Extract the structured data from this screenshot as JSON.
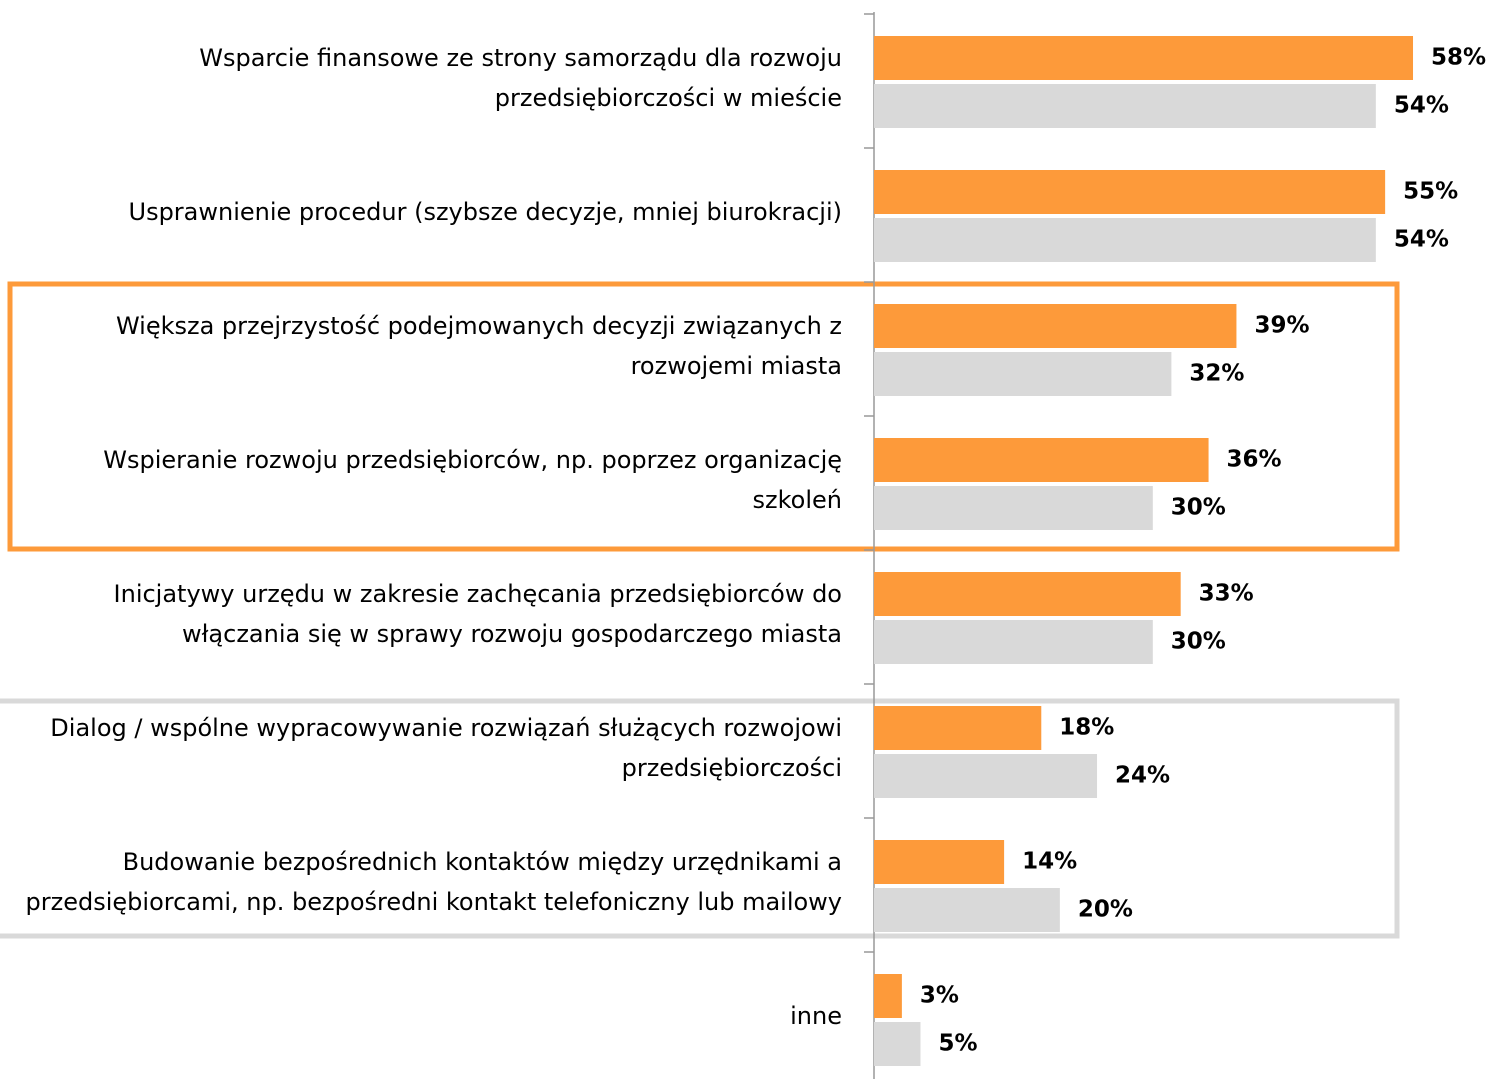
{
  "chart_data": {
    "type": "hbar",
    "categories": [
      [
        "Wsparcie finansowe ze strony samorządu dla rozwoju",
        "przedsiębiorczości w mieście"
      ],
      [
        "Usprawnienie procedur (szybsze decyzje, mniej biurokracji)"
      ],
      [
        "Większa przejrzystość podejmowanych decyzji związanych z",
        "rozwojemi miasta"
      ],
      [
        "Wspieranie rozwoju przedsiębiorców, np. poprzez organizację",
        "szkoleń"
      ],
      [
        "Inicjatywy urzędu w zakresie zachęcania przedsiębiorców do",
        "włączania się w sprawy rozwoju gospodarczego miasta"
      ],
      [
        "Dialog / wspólne wypracowywanie rozwiązań służących rozwojowi",
        "przedsiębiorczości"
      ],
      [
        "Budowanie bezpośrednich kontaktów między urzędnikami a",
        "przedsiębiorcami, np. bezpośredni kontakt telefoniczny lub mailowy"
      ],
      [
        "inne"
      ]
    ],
    "series": [
      {
        "color": "#fd9a3a",
        "values": [
          58,
          55,
          39,
          36,
          33,
          18,
          14,
          3
        ],
        "value_labels": [
          "58%",
          "55%",
          "39%",
          "36%",
          "33%",
          "18%",
          "14%",
          "3%"
        ]
      },
      {
        "color": "#d9d9d9",
        "values": [
          54,
          54,
          32,
          30,
          30,
          24,
          20,
          5
        ],
        "value_labels": [
          "54%",
          "54%",
          "32%",
          "30%",
          "30%",
          "24%",
          "20%",
          "5%"
        ]
      }
    ],
    "xlim": [
      0,
      60
    ]
  }
}
